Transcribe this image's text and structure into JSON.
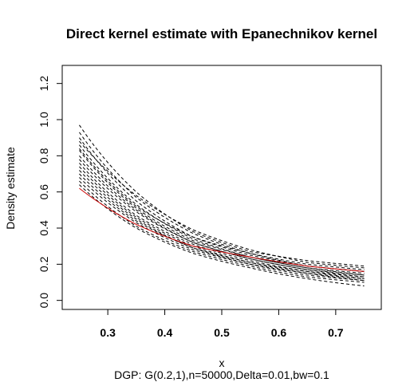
{
  "chart_data": {
    "type": "line",
    "title": "Direct kernel estimate with Epanechnikov kernel",
    "xlabel": "x",
    "ylabel": "Density estimate",
    "subtitle": "DGP: G(0.2,1),n=50000,Delta=0.01,bw=0.1",
    "xlim": [
      0.22,
      0.78
    ],
    "ylim": [
      -0.05,
      1.3
    ],
    "x_ticks": [
      "0.3",
      "0.4",
      "0.5",
      "0.6",
      "0.7"
    ],
    "y_ticks": [
      "0.0",
      "0.2",
      "0.4",
      "0.6",
      "0.8",
      "1.0",
      "1.2"
    ],
    "grid": false,
    "legend": "none",
    "x_range": [
      0.25,
      0.75
    ],
    "series": [
      {
        "color": "#000000",
        "dash": true,
        "values": [
          0.97,
          0.6,
          0.38,
          0.27,
          0.22,
          0.19
        ]
      },
      {
        "color": "#000000",
        "dash": true,
        "values": [
          0.93,
          0.57,
          0.37,
          0.26,
          0.2,
          0.17
        ]
      },
      {
        "color": "#000000",
        "dash": true,
        "values": [
          0.9,
          0.55,
          0.35,
          0.25,
          0.19,
          0.16
        ]
      },
      {
        "color": "#000000",
        "dash": true,
        "values": [
          0.86,
          0.53,
          0.34,
          0.24,
          0.18,
          0.15
        ]
      },
      {
        "color": "#000000",
        "dash": true,
        "values": [
          0.83,
          0.51,
          0.33,
          0.24,
          0.18,
          0.14
        ]
      },
      {
        "color": "#000000",
        "dash": true,
        "values": [
          0.8,
          0.5,
          0.32,
          0.23,
          0.17,
          0.14
        ]
      },
      {
        "color": "#000000",
        "dash": true,
        "values": [
          0.78,
          0.49,
          0.32,
          0.23,
          0.17,
          0.13
        ]
      },
      {
        "color": "#000000",
        "dash": true,
        "values": [
          0.76,
          0.47,
          0.31,
          0.22,
          0.16,
          0.13
        ]
      },
      {
        "color": "#000000",
        "dash": true,
        "values": [
          0.74,
          0.46,
          0.3,
          0.21,
          0.16,
          0.12
        ]
      },
      {
        "color": "#000000",
        "dash": true,
        "values": [
          0.72,
          0.45,
          0.29,
          0.21,
          0.15,
          0.12
        ]
      },
      {
        "color": "#000000",
        "dash": true,
        "values": [
          0.7,
          0.44,
          0.29,
          0.2,
          0.15,
          0.11
        ]
      },
      {
        "color": "#000000",
        "dash": true,
        "values": [
          0.68,
          0.43,
          0.28,
          0.2,
          0.14,
          0.11
        ]
      },
      {
        "color": "#000000",
        "dash": true,
        "values": [
          0.66,
          0.41,
          0.27,
          0.19,
          0.13,
          0.1
        ]
      },
      {
        "color": "#000000",
        "dash": true,
        "values": [
          0.64,
          0.4,
          0.26,
          0.18,
          0.12,
          0.08
        ]
      },
      {
        "color": "#000000",
        "dash": true,
        "values": [
          0.88,
          0.58,
          0.39,
          0.28,
          0.21,
          0.18
        ]
      },
      {
        "color": "#000000",
        "dash": true,
        "values": [
          0.84,
          0.52,
          0.35,
          0.26,
          0.19,
          0.16
        ]
      },
      {
        "color": "#cc0000",
        "dash": false,
        "values": [
          0.62,
          0.42,
          0.3,
          0.24,
          0.19,
          0.16
        ]
      }
    ]
  }
}
